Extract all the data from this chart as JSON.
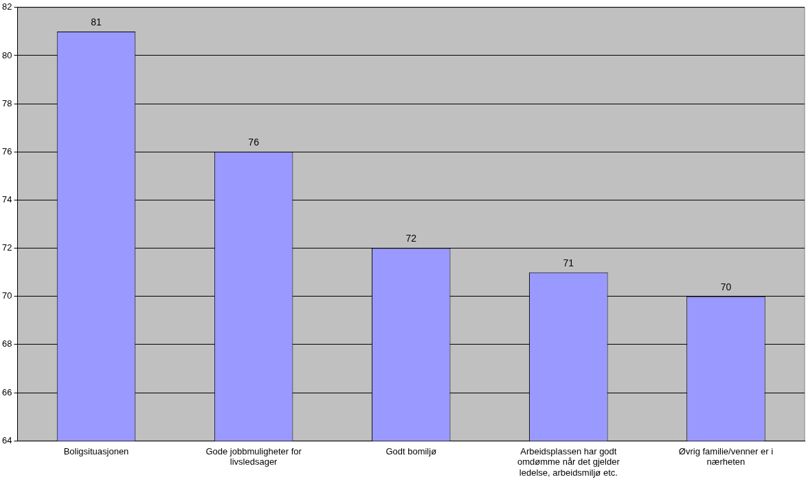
{
  "chart_data": {
    "type": "bar",
    "categories": [
      "Boligsituasjonen",
      "Gode jobbmuligheter for livsledsager",
      "Godt bomiljø",
      "Arbeidsplassen har godt omdømme når det gjelder ledelse, arbeidsmiljø etc.",
      "Øvrig familie/venner er i nærheten"
    ],
    "values": [
      81,
      76,
      72,
      71,
      70
    ],
    "color": "#9999ff",
    "ylim": [
      64,
      82
    ],
    "yticks": [
      64,
      66,
      68,
      70,
      72,
      74,
      76,
      78,
      80,
      82
    ],
    "grid": "y",
    "legend": false,
    "data_labels": true
  }
}
